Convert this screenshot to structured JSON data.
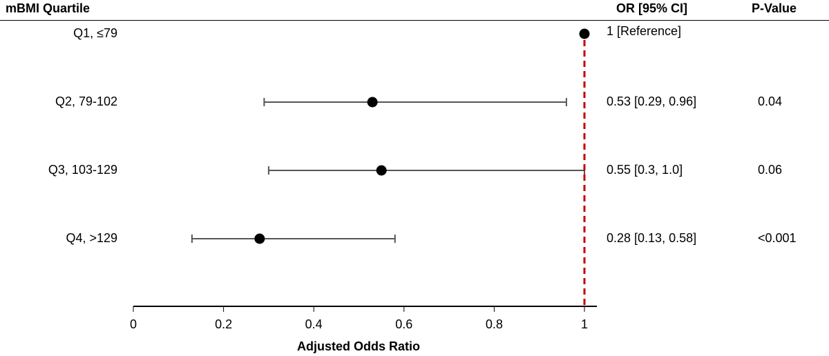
{
  "headers": {
    "quartile": "mBMI Quartile",
    "or": "OR [95% CI]",
    "pvalue": "P-Value"
  },
  "chart_data": {
    "type": "forest",
    "xlabel": "Adjusted Odds Ratio",
    "xlim": [
      0,
      1
    ],
    "xticks": [
      "0",
      "0.2",
      "0.4",
      "0.6",
      "0.8",
      "1"
    ],
    "reference_line": 1,
    "reference_color": "#c00000",
    "rows": [
      {
        "label": "Q1, ≤79",
        "or": 1,
        "lo": null,
        "hi": null,
        "or_text": "1 [Reference]",
        "p": ""
      },
      {
        "label": "Q2, 79-102",
        "or": 0.53,
        "lo": 0.29,
        "hi": 0.96,
        "or_text": "0.53 [0.29, 0.96]",
        "p": "0.04"
      },
      {
        "label": "Q3, 103-129",
        "or": 0.55,
        "lo": 0.3,
        "hi": 1.0,
        "or_text": "0.55 [0.3, 1.0]",
        "p": "0.06"
      },
      {
        "label": "Q4, >129",
        "or": 0.28,
        "lo": 0.13,
        "hi": 0.58,
        "or_text": "0.28 [0.13, 0.58]",
        "p": "<0.001"
      }
    ]
  }
}
